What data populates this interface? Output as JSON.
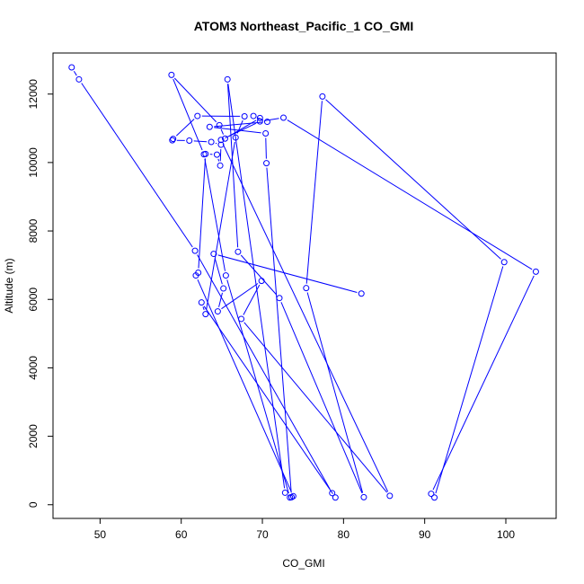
{
  "chart_data": {
    "type": "line",
    "title": "ATOM3 Northeast_Pacific_1 CO_GMI",
    "xlabel": "CO_GMI",
    "ylabel": "Altitude (m)",
    "xlim": [
      44.2,
      106.2
    ],
    "ylim": [
      -400,
      13200
    ],
    "xticks": [
      50,
      60,
      70,
      80,
      90,
      100
    ],
    "yticks": [
      0,
      2000,
      4000,
      6000,
      8000,
      10000,
      12000
    ],
    "grid": false,
    "legend": "none",
    "series_color": "#0000ff",
    "points": [
      [
        46.5,
        12780
      ],
      [
        47.4,
        12430
      ],
      [
        61.7,
        7420
      ],
      [
        78.6,
        340
      ],
      [
        79.0,
        210
      ],
      [
        62.5,
        5910
      ],
      [
        63.0,
        5570
      ],
      [
        66.7,
        10730
      ],
      [
        67.8,
        11350
      ],
      [
        62.0,
        11360
      ],
      [
        59.0,
        10690
      ],
      [
        58.9,
        10650
      ],
      [
        61.0,
        10640
      ],
      [
        63.7,
        10600
      ],
      [
        64.9,
        10520
      ],
      [
        64.8,
        9910
      ],
      [
        64.4,
        10230
      ],
      [
        63.0,
        10250
      ],
      [
        62.1,
        6780
      ],
      [
        61.8,
        6700
      ],
      [
        73.8,
        250
      ],
      [
        73.6,
        220
      ],
      [
        70.5,
        9980
      ],
      [
        70.4,
        10850
      ],
      [
        63.5,
        11040
      ],
      [
        70.6,
        11190
      ],
      [
        68.9,
        11360
      ],
      [
        69.7,
        11300
      ],
      [
        65.4,
        10700
      ],
      [
        64.7,
        11090
      ],
      [
        58.8,
        12560
      ],
      [
        62.8,
        10240
      ],
      [
        65.5,
        6700
      ],
      [
        73.4,
        210
      ],
      [
        72.8,
        350
      ],
      [
        65.7,
        12430
      ],
      [
        67.0,
        7390
      ],
      [
        72.1,
        6040
      ],
      [
        82.5,
        220
      ],
      [
        75.4,
        6330
      ],
      [
        77.4,
        11930
      ],
      [
        99.8,
        7090
      ],
      [
        91.2,
        210
      ],
      [
        90.8,
        320
      ],
      [
        103.7,
        6810
      ],
      [
        72.6,
        11310
      ],
      [
        69.7,
        11200
      ],
      [
        64.9,
        10660
      ],
      [
        85.7,
        260
      ],
      [
        67.4,
        5430
      ],
      [
        69.9,
        6540
      ],
      [
        64.5,
        5650
      ],
      [
        65.2,
        6320
      ],
      [
        64.0,
        7330
      ],
      [
        82.2,
        6170
      ]
    ]
  }
}
